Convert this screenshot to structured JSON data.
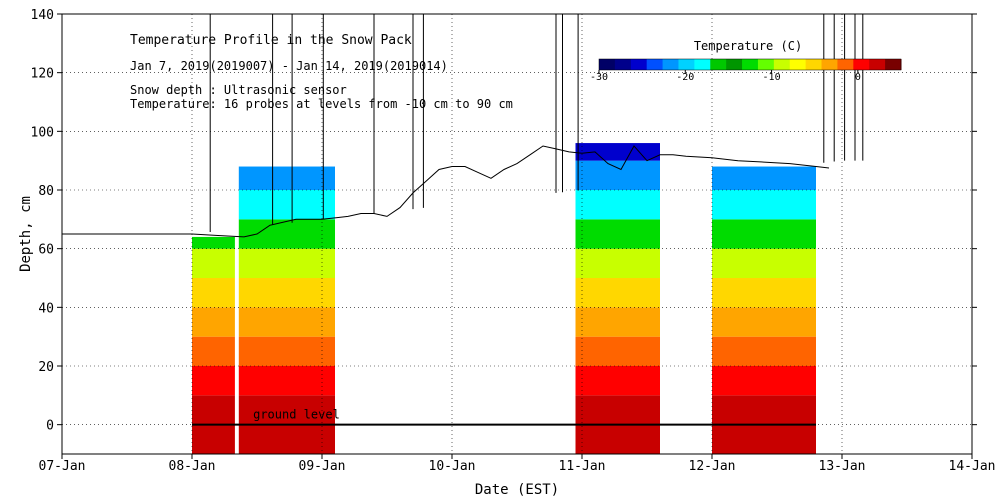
{
  "chart_data": {
    "type": "heatmap",
    "title": "Temperature Profile in the Snow Pack",
    "subtitle": "Jan  7, 2019(2019007) - Jan 14, 2019(2019014)",
    "annotations": [
      "Snow depth : Ultrasonic sensor",
      "Temperature: 16 probes at levels from -10 cm to 90 cm"
    ],
    "ground_label": "ground level",
    "xlabel": "Date (EST)",
    "ylabel": "Depth, cm",
    "x_ticks": [
      "07-Jan",
      "08-Jan",
      "09-Jan",
      "10-Jan",
      "11-Jan",
      "12-Jan",
      "13-Jan",
      "14-Jan"
    ],
    "xlim_days": [
      0,
      7
    ],
    "y_ticks": [
      0,
      20,
      40,
      60,
      80,
      100,
      120,
      140
    ],
    "ylim": [
      -10,
      140
    ],
    "grid": true,
    "colorbar": {
      "title": "Temperature (C)",
      "range": [
        -30,
        5
      ],
      "ticks": [
        -30,
        -20,
        -10,
        0
      ],
      "colors": [
        "#000066",
        "#00008b",
        "#0000cd",
        "#0050ff",
        "#0096ff",
        "#00d2ff",
        "#00ffff",
        "#00c800",
        "#009600",
        "#00dc00",
        "#64ff00",
        "#c8ff00",
        "#ffff00",
        "#ffd700",
        "#ffa500",
        "#ff6400",
        "#ff0000",
        "#c80000",
        "#780000"
      ]
    },
    "snow_depth_series": {
      "name": "Snow depth",
      "days": [
        0,
        0.5,
        1.0,
        1.2,
        1.4,
        1.5,
        1.6,
        1.7,
        1.8,
        1.9,
        2.0,
        2.1,
        2.2,
        2.3,
        2.4,
        2.5,
        2.6,
        2.7,
        2.8,
        2.9,
        3.0,
        3.1,
        3.2,
        3.3,
        3.4,
        3.5,
        3.6,
        3.7,
        3.8,
        3.9,
        4.0,
        4.1,
        4.2,
        4.3,
        4.4,
        4.5,
        4.6,
        4.7,
        4.8,
        5.0,
        5.2,
        5.4,
        5.6,
        5.8,
        5.9
      ],
      "depth_cm": [
        65,
        65,
        65,
        64.5,
        64,
        65,
        68,
        69,
        70,
        70,
        70,
        70.5,
        71,
        72,
        72,
        71,
        74,
        79,
        83,
        87,
        88,
        88,
        86,
        84,
        87,
        89,
        92,
        95,
        94,
        93,
        92.5,
        93,
        89,
        87,
        95,
        90,
        92,
        92,
        91.5,
        91,
        90,
        89.5,
        89,
        88,
        87.5
      ]
    },
    "temperature_blocks": [
      {
        "start_day": 1.0,
        "end_day": 1.33,
        "top_cm": 64
      },
      {
        "start_day": 1.36,
        "end_day": 2.1,
        "top_cm": 88
      },
      {
        "start_day": 3.95,
        "end_day": 4.6,
        "top_cm": 96
      },
      {
        "start_day": 5.0,
        "end_day": 5.8,
        "top_cm": 88
      }
    ],
    "temperature_by_level": {
      "levels_cm": [
        -10,
        0,
        10,
        20,
        30,
        40,
        50,
        60,
        70,
        80,
        90
      ],
      "typical_c": [
        2,
        2,
        0,
        -2,
        -4,
        -6,
        -8,
        -12,
        -18,
        -22,
        -26
      ]
    }
  }
}
